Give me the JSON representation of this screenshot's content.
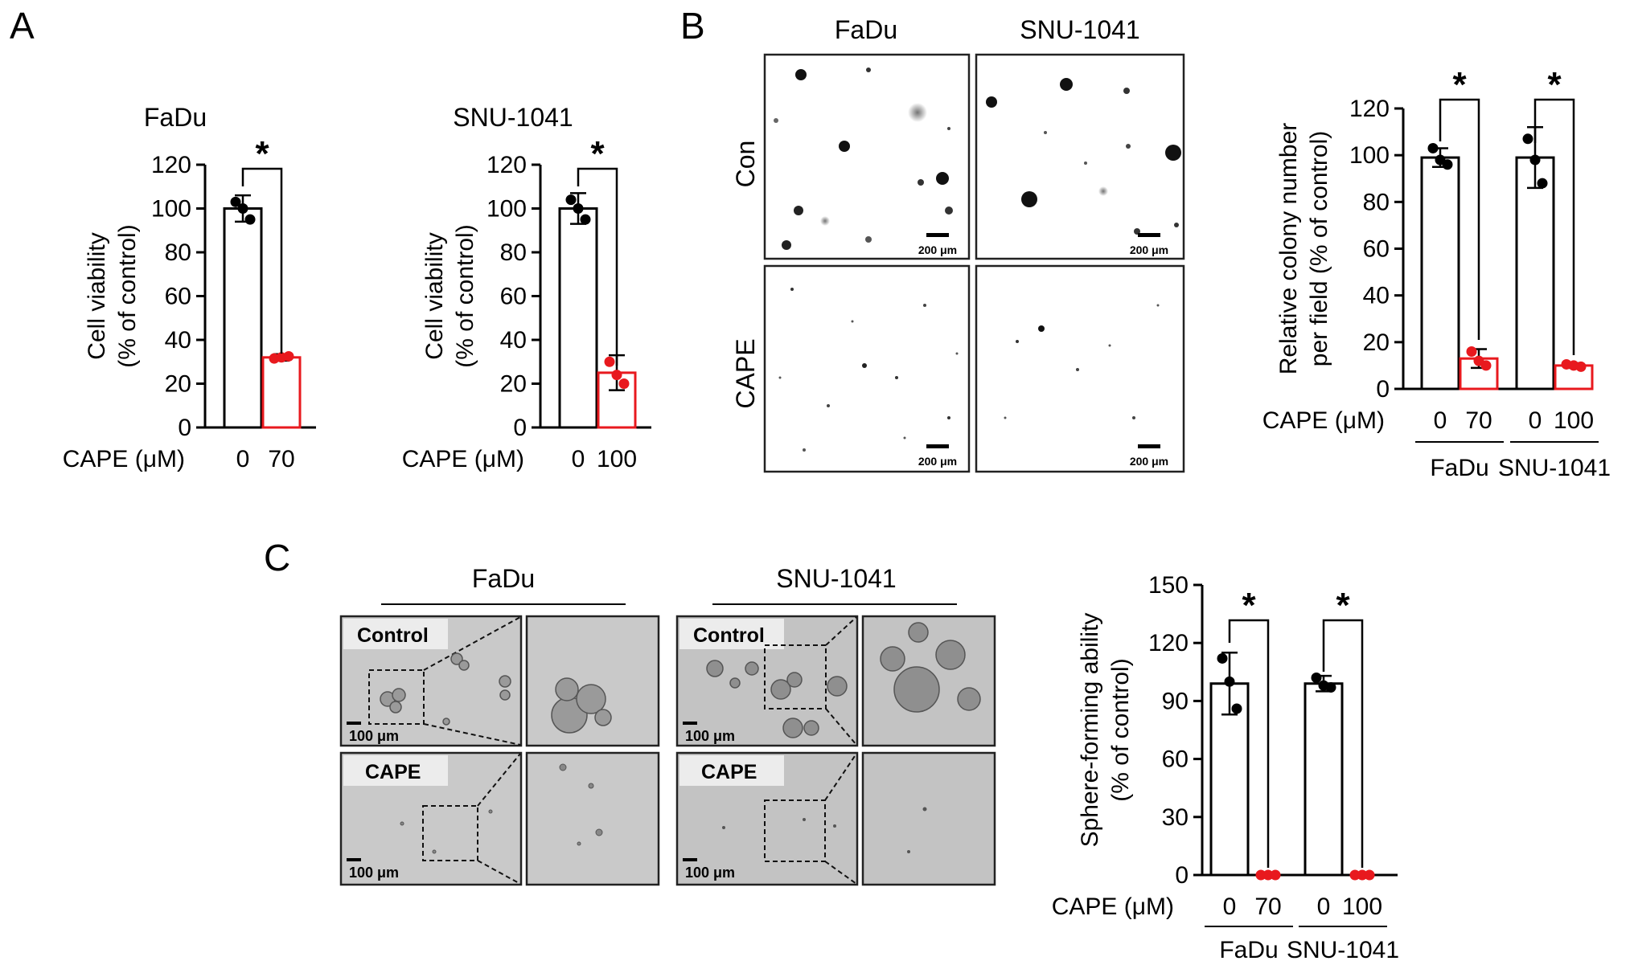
{
  "panels": {
    "a": "A",
    "b": "B",
    "c": "C"
  },
  "colors": {
    "control": "#000000",
    "treated": "#e8191e",
    "micrograph_background": "#ffffff",
    "sphere_background": "#c8c8c8"
  },
  "panel_b": {
    "columns": [
      "FaDu",
      "SNU-1041"
    ],
    "rows": [
      "Con",
      "CAPE"
    ],
    "scale_bar": "200 μm"
  },
  "panel_c": {
    "groups": [
      "FaDu",
      "SNU-1041"
    ],
    "rows": [
      "Control",
      "CAPE"
    ],
    "scale_bar": "100 μm"
  },
  "chart_data": [
    {
      "type": "bar",
      "panel": "A",
      "title": "FaDu",
      "ylabel": "Cell viability\n(% of control)",
      "xlabel": "CAPE (μM)",
      "categories": [
        "0",
        "70"
      ],
      "values": [
        100,
        32
      ],
      "errors": [
        6,
        1.5
      ],
      "points": [
        [
          103,
          100,
          95
        ],
        [
          31.5,
          32,
          32.5
        ]
      ],
      "bar_colors": [
        "#000000",
        "#e8191e"
      ],
      "ylim": [
        0,
        120
      ],
      "yticks": [
        "0",
        "20",
        "40",
        "60",
        "80",
        "100",
        "120"
      ],
      "significance": "*"
    },
    {
      "type": "bar",
      "panel": "A",
      "title": "SNU-1041",
      "ylabel": "Cell viability\n(% of control)",
      "xlabel": "CAPE (μM)",
      "categories": [
        "0",
        "100"
      ],
      "values": [
        100,
        25
      ],
      "errors": [
        7,
        8
      ],
      "points": [
        [
          104,
          100,
          95
        ],
        [
          30,
          24,
          20
        ]
      ],
      "bar_colors": [
        "#000000",
        "#e8191e"
      ],
      "ylim": [
        0,
        120
      ],
      "yticks": [
        "0",
        "20",
        "40",
        "60",
        "80",
        "100",
        "120"
      ],
      "significance": "*"
    },
    {
      "type": "bar",
      "panel": "B",
      "ylabel": "Relative colony number\nper field (% of control)",
      "xlabel": "CAPE (μM)",
      "categories": [
        "0",
        "70",
        "0",
        "100"
      ],
      "groups": [
        "FaDu",
        "SNU-1041"
      ],
      "values": [
        99,
        13,
        99,
        10
      ],
      "errors": [
        4,
        4,
        13,
        1
      ],
      "points": [
        [
          103,
          98,
          96
        ],
        [
          16,
          12,
          10
        ],
        [
          107,
          98,
          88
        ],
        [
          10.5,
          10,
          9.5
        ]
      ],
      "bar_colors": [
        "#000000",
        "#e8191e",
        "#000000",
        "#e8191e"
      ],
      "ylim": [
        0,
        120
      ],
      "yticks": [
        "0",
        "20",
        "40",
        "60",
        "80",
        "100",
        "120"
      ],
      "significance": [
        "*",
        "*"
      ]
    },
    {
      "type": "bar",
      "panel": "C",
      "ylabel": "Sphere-forming ability\n(% of control)",
      "xlabel": "CAPE (μM)",
      "categories": [
        "0",
        "70",
        "0",
        "100"
      ],
      "groups": [
        "FaDu",
        "SNU-1041"
      ],
      "values": [
        99,
        0,
        99,
        0
      ],
      "errors": [
        16,
        0,
        4,
        0
      ],
      "points": [
        [
          112,
          100,
          86
        ],
        [
          0,
          0,
          0
        ],
        [
          102,
          98,
          97
        ],
        [
          0,
          0,
          0
        ]
      ],
      "bar_colors": [
        "#000000",
        "#e8191e",
        "#000000",
        "#e8191e"
      ],
      "ylim": [
        0,
        150
      ],
      "yticks": [
        "0",
        "30",
        "60",
        "90",
        "120",
        "150"
      ],
      "significance": [
        "*",
        "*"
      ]
    }
  ]
}
